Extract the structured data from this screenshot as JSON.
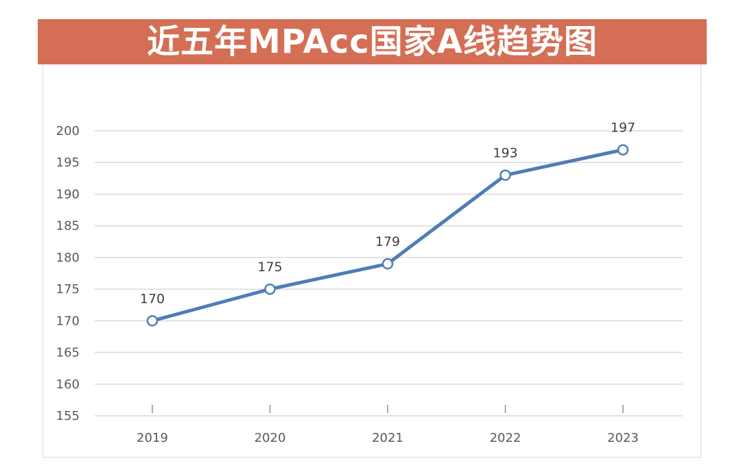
{
  "colors": {
    "banner": "#D46F55",
    "line": "#4F7DB5",
    "gridline": "#D9D9D9",
    "axis_text": "#595959",
    "data_label_text": "#404040",
    "marker_fill": "#FFFFFF"
  },
  "chart_data": {
    "type": "line",
    "title": "近五年MPAcc国家A线趋势图",
    "xlabel": "",
    "ylabel": "",
    "categories": [
      "2019",
      "2020",
      "2021",
      "2022",
      "2023"
    ],
    "series": [
      {
        "values": [
          170,
          175,
          179,
          193,
          197
        ]
      }
    ],
    "ylim": [
      155,
      200
    ],
    "yticks": [
      155,
      160,
      165,
      170,
      175,
      180,
      185,
      190,
      195,
      200
    ],
    "grid": true,
    "legend": "none",
    "data_labels": true,
    "markers": "hollow-circle"
  }
}
